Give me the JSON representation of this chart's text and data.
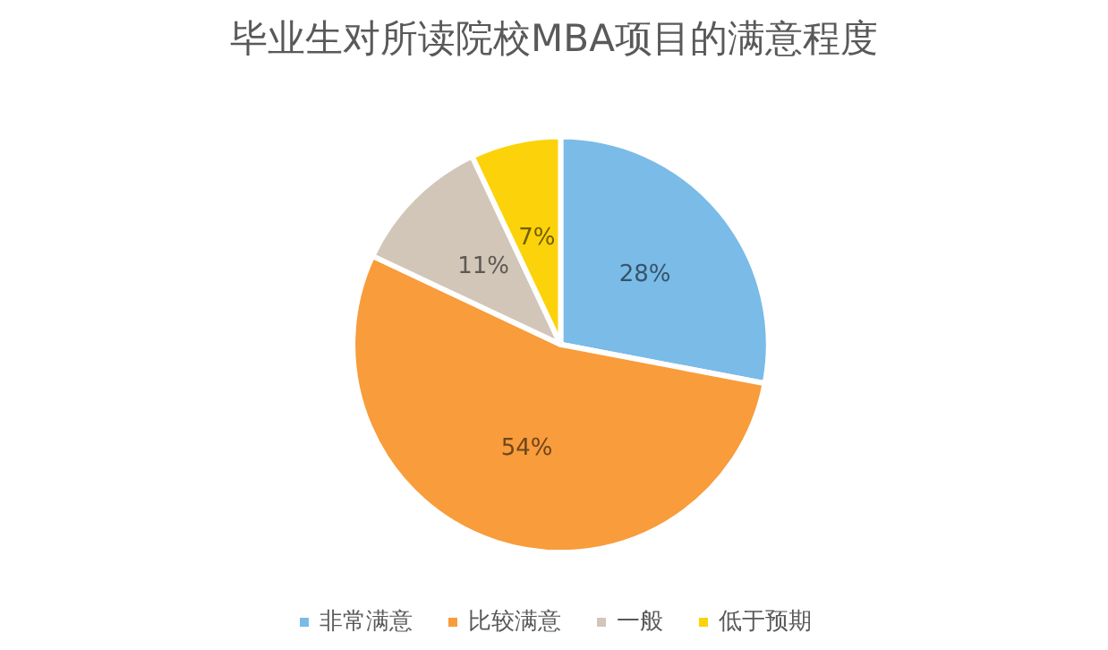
{
  "chart_data": {
    "type": "pie",
    "title": "毕业生对所读院校MBA项目的满意程度",
    "categories": [
      "非常满意",
      "比较满意",
      "一般",
      "低于预期"
    ],
    "values": [
      28,
      54,
      11,
      7
    ],
    "colors": [
      "#7abbe8",
      "#f89c3c",
      "#d2c6b9",
      "#fcd20a"
    ],
    "value_labels": [
      "28%",
      "54%",
      "11%",
      "7%"
    ],
    "legend": "bottom"
  }
}
